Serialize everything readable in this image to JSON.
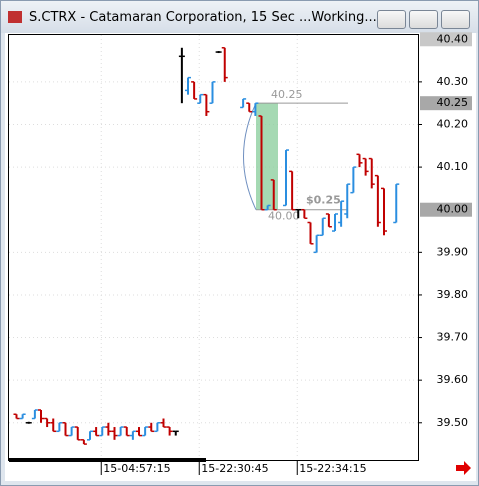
{
  "chart_data": {
    "type": "ohlc",
    "title": "S.CTRX - Catamaran Corporation, 15 Sec ...Working...",
    "categories": [
      null,
      null,
      null,
      null,
      null,
      null,
      null,
      null,
      null,
      null,
      null,
      null,
      null,
      null,
      "15-04:57:15",
      null,
      null,
      null,
      null,
      null,
      null,
      null,
      null,
      null,
      null,
      null,
      null,
      null,
      null,
      null,
      "15-22:30:45",
      null,
      null,
      null,
      null,
      null,
      null,
      null,
      null,
      null,
      null,
      null,
      null,
      null,
      null,
      null,
      "15-22:34:15",
      null,
      null,
      null,
      null,
      null,
      null,
      null,
      null,
      null,
      null,
      null,
      null,
      null,
      null,
      null,
      null
    ],
    "open": [
      39.52,
      39.51,
      39.5,
      39.51,
      39.53,
      39.51,
      39.5,
      39.48,
      39.5,
      39.47,
      39.49,
      39.46,
      39.46,
      39.48,
      39.47,
      39.49,
      39.48,
      39.47,
      39.49,
      39.47,
      39.48,
      39.47,
      39.49,
      39.48,
      39.5,
      39.49,
      39.48,
      40.36,
      40.28,
      40.3,
      40.25,
      40.27,
      40.25,
      40.37,
      40.38,
      null,
      null,
      40.24,
      40.25,
      40.23,
      40.22,
      40.0,
      40.07,
      null,
      40.01,
      40.09,
      40.0,
      40.0,
      39.97,
      39.9,
      39.94,
      39.99,
      39.95,
      39.97,
      39.99,
      40.04,
      40.13,
      40.12,
      40.12,
      40.08,
      40.05,
      null,
      39.97
    ],
    "high": [
      39.52,
      39.52,
      39.5,
      39.53,
      39.53,
      39.51,
      39.51,
      39.5,
      39.5,
      39.49,
      39.49,
      39.46,
      39.48,
      39.49,
      39.49,
      39.5,
      39.49,
      39.49,
      39.49,
      39.48,
      39.49,
      39.49,
      39.5,
      39.5,
      39.51,
      39.49,
      39.48,
      40.38,
      40.31,
      40.3,
      40.27,
      40.27,
      40.3,
      40.37,
      40.38,
      null,
      null,
      40.26,
      40.25,
      40.25,
      40.22,
      40.01,
      40.07,
      null,
      40.14,
      40.09,
      40.0,
      40.0,
      39.97,
      39.94,
      39.98,
      39.99,
      39.99,
      40.02,
      40.06,
      40.1,
      40.13,
      40.12,
      40.12,
      40.08,
      40.05,
      null,
      40.06
    ],
    "low": [
      39.51,
      39.51,
      39.5,
      39.51,
      39.5,
      39.49,
      39.48,
      39.48,
      39.47,
      39.47,
      39.46,
      39.45,
      39.46,
      39.47,
      39.47,
      39.47,
      39.46,
      39.47,
      39.47,
      39.46,
      39.47,
      39.47,
      39.48,
      39.48,
      39.49,
      39.47,
      39.47,
      40.25,
      40.27,
      40.26,
      40.25,
      40.22,
      40.25,
      40.37,
      40.3,
      null,
      null,
      40.24,
      40.23,
      40.22,
      40.0,
      40.0,
      40.0,
      null,
      40.01,
      40.0,
      39.98,
      39.98,
      39.92,
      39.9,
      39.94,
      39.96,
      39.95,
      39.96,
      39.98,
      40.04,
      40.1,
      40.08,
      40.05,
      39.96,
      39.94,
      null,
      39.97
    ],
    "close": [
      39.51,
      39.52,
      39.5,
      39.53,
      39.51,
      39.5,
      39.48,
      39.5,
      39.47,
      39.49,
      39.46,
      39.45,
      39.48,
      39.47,
      39.49,
      39.48,
      39.47,
      39.49,
      39.47,
      39.48,
      39.47,
      39.49,
      39.48,
      39.5,
      39.49,
      39.48,
      39.48,
      40.36,
      40.31,
      40.26,
      40.27,
      40.23,
      40.3,
      40.37,
      40.31,
      null,
      null,
      40.26,
      40.23,
      40.25,
      40.0,
      40.01,
      40.0,
      null,
      40.14,
      40.0,
      40.0,
      39.98,
      39.92,
      39.94,
      39.98,
      39.96,
      39.99,
      40.02,
      40.06,
      40.1,
      40.11,
      40.09,
      40.06,
      39.97,
      39.95,
      null,
      40.06
    ],
    "up_color": "#2a8ee0",
    "down_color": "#c00000",
    "flat_color": "#000000",
    "ylim": [
      39.415,
      40.41
    ],
    "yticks": [
      {
        "value": 40.3,
        "label": "40.30"
      },
      {
        "value": 40.2,
        "label": "40.20"
      },
      {
        "value": 40.1,
        "label": "40.10"
      },
      {
        "value": 39.9,
        "label": "39.90"
      },
      {
        "value": 39.8,
        "label": "39.80"
      },
      {
        "value": 39.7,
        "label": "39.70"
      },
      {
        "value": 39.6,
        "label": "39.60"
      },
      {
        "value": 39.5,
        "label": "39.50"
      }
    ],
    "price_markers": [
      {
        "value": 40.4,
        "label": "40.40"
      },
      {
        "value": 40.25,
        "label": "40.25"
      },
      {
        "value": 40.0,
        "label": "40.00"
      }
    ],
    "grid": true,
    "measure": {
      "high": {
        "value": 40.25,
        "label": "40.25"
      },
      "low": {
        "value": 40.0,
        "label": "40.00"
      },
      "change": {
        "value": 0.25,
        "label": "$0.25"
      }
    }
  }
}
